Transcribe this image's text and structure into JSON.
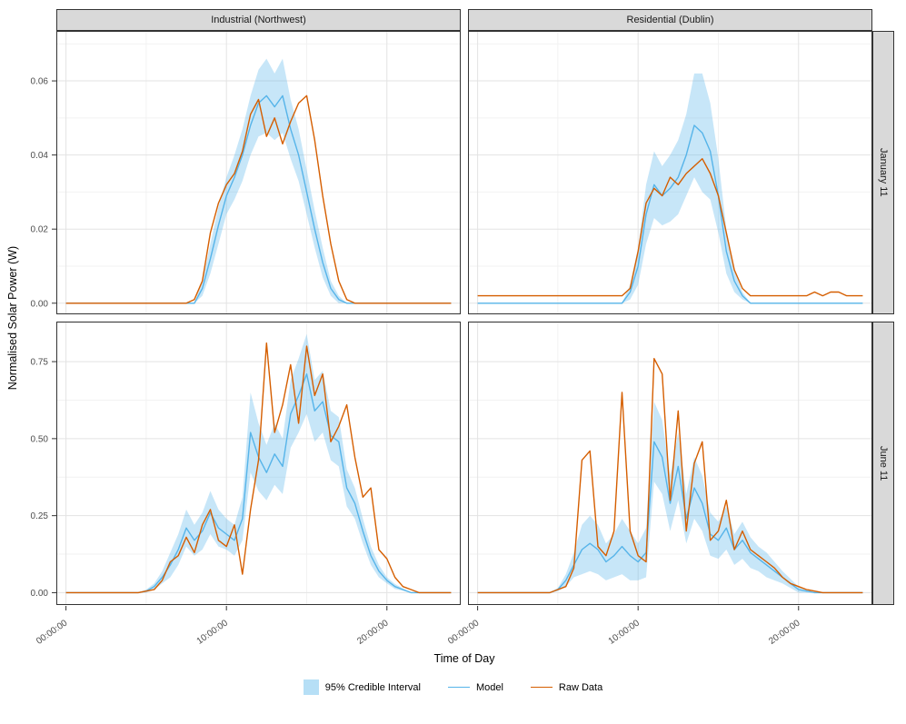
{
  "colors": {
    "model": "#56B4E9",
    "raw": "#D55E00",
    "ribbon": "#56B4E9",
    "ribbon_opacity": 0.33,
    "strip_bg": "#D9D9D9",
    "grid_major": "#E3E3E3",
    "grid_minor": "#F2F2F2",
    "panel_border": "#333333",
    "tick_text": "#4D4D4D"
  },
  "chart_data": {
    "type": "line",
    "title": "",
    "xlabel": "Time of Day",
    "ylabel": "Normalised Solar Power (W)",
    "legend": {
      "ci": "95% Credible Interval",
      "model": "Model",
      "raw": "Raw Data"
    },
    "legend_position": "bottom",
    "grid": true,
    "facet_cols": [
      "Industrial (Northwest)",
      "Residential (Dublin)"
    ],
    "facet_rows": [
      "January 11",
      "June 11"
    ],
    "xlim": [
      -0.6,
      24.6
    ],
    "x_tick_hours": [
      0,
      10,
      20
    ],
    "x_tick_labels": [
      "00:00:00",
      "10:00:00",
      "20:00:00"
    ],
    "x_minor_hours": [
      5,
      15
    ],
    "rows": [
      {
        "label": "January 11",
        "ylim": [
          -0.003,
          0.0735
        ],
        "yticks": [
          0,
          0.02,
          0.04,
          0.06
        ],
        "ytick_labels": [
          "0.00",
          "0.02",
          "0.04",
          "0.06"
        ],
        "yminor": [
          0.01,
          0.03,
          0.05,
          0.07
        ]
      },
      {
        "label": "June 11",
        "ylim": [
          -0.04,
          0.88
        ],
        "yticks": [
          0,
          0.25,
          0.5,
          0.75
        ],
        "ytick_labels": [
          "0.00",
          "0.25",
          "0.50",
          "0.75"
        ],
        "yminor": [
          0.125,
          0.375,
          0.625,
          0.875
        ]
      }
    ],
    "x_hours": [
      0,
      0.5,
      1,
      1.5,
      2,
      2.5,
      3,
      3.5,
      4,
      4.5,
      5,
      5.5,
      6,
      6.5,
      7,
      7.5,
      8,
      8.5,
      9,
      9.5,
      10,
      10.5,
      11,
      11.5,
      12,
      12.5,
      13,
      13.5,
      14,
      14.5,
      15,
      15.5,
      16,
      16.5,
      17,
      17.5,
      18,
      18.5,
      19,
      19.5,
      20,
      20.5,
      21,
      21.5,
      22,
      22.5,
      23,
      23.5,
      24
    ],
    "panels": [
      {
        "name": "january-industrial",
        "row": 0,
        "col": 0,
        "model": [
          0,
          0,
          0,
          0,
          0,
          0,
          0,
          0,
          0,
          0,
          0,
          0,
          0,
          0,
          0,
          0,
          0,
          0.004,
          0.012,
          0.021,
          0.029,
          0.034,
          0.04,
          0.048,
          0.054,
          0.056,
          0.053,
          0.056,
          0.047,
          0.04,
          0.03,
          0.02,
          0.011,
          0.004,
          0.001,
          0,
          0,
          0,
          0,
          0,
          0,
          0,
          0,
          0,
          0,
          0,
          0,
          0,
          0
        ],
        "raw": [
          0,
          0,
          0,
          0,
          0,
          0,
          0,
          0,
          0,
          0,
          0,
          0,
          0,
          0,
          0,
          0,
          0.001,
          0.006,
          0.019,
          0.027,
          0.032,
          0.035,
          0.041,
          0.051,
          0.055,
          0.045,
          0.05,
          0.043,
          0.049,
          0.054,
          0.056,
          0.044,
          0.029,
          0.016,
          0.006,
          0.001,
          0,
          0,
          0,
          0,
          0,
          0,
          0,
          0,
          0,
          0,
          0,
          0,
          0
        ],
        "ci_halfwidth": [
          0,
          0,
          0,
          0,
          0,
          0,
          0,
          0,
          0,
          0,
          0,
          0,
          0,
          0,
          0,
          0,
          0,
          0.002,
          0.004,
          0.005,
          0.005,
          0.006,
          0.007,
          0.008,
          0.009,
          0.01,
          0.009,
          0.01,
          0.008,
          0.007,
          0.006,
          0.005,
          0.004,
          0.002,
          0.001,
          0,
          0,
          0,
          0,
          0,
          0,
          0,
          0,
          0,
          0,
          0,
          0,
          0,
          0
        ]
      },
      {
        "name": "january-residential",
        "row": 0,
        "col": 1,
        "model": [
          0,
          0,
          0,
          0,
          0,
          0,
          0,
          0,
          0,
          0,
          0,
          0,
          0,
          0,
          0,
          0,
          0,
          0,
          0,
          0.003,
          0.01,
          0.024,
          0.032,
          0.029,
          0.031,
          0.034,
          0.04,
          0.048,
          0.046,
          0.041,
          0.029,
          0.014,
          0.006,
          0.002,
          0,
          0,
          0,
          0,
          0,
          0,
          0,
          0,
          0,
          0,
          0,
          0,
          0,
          0,
          0
        ],
        "raw": [
          0.002,
          0.002,
          0.002,
          0.002,
          0.002,
          0.002,
          0.002,
          0.002,
          0.002,
          0.002,
          0.002,
          0.002,
          0.002,
          0.002,
          0.002,
          0.002,
          0.002,
          0.002,
          0.002,
          0.004,
          0.014,
          0.027,
          0.031,
          0.029,
          0.034,
          0.032,
          0.035,
          0.037,
          0.039,
          0.035,
          0.029,
          0.019,
          0.009,
          0.004,
          0.002,
          0.002,
          0.002,
          0.002,
          0.002,
          0.002,
          0.002,
          0.002,
          0.003,
          0.002,
          0.003,
          0.003,
          0.002,
          0.002,
          0.002
        ],
        "ci_halfwidth": [
          0,
          0,
          0,
          0,
          0,
          0,
          0,
          0,
          0,
          0,
          0,
          0,
          0,
          0,
          0,
          0,
          0,
          0,
          0,
          0.002,
          0.005,
          0.008,
          0.009,
          0.008,
          0.009,
          0.01,
          0.011,
          0.014,
          0.016,
          0.013,
          0.01,
          0.006,
          0.003,
          0.001,
          0,
          0,
          0,
          0,
          0,
          0,
          0,
          0,
          0,
          0,
          0,
          0,
          0,
          0,
          0
        ]
      },
      {
        "name": "june-industrial",
        "row": 1,
        "col": 0,
        "model": [
          0,
          0,
          0,
          0,
          0,
          0,
          0,
          0,
          0,
          0,
          0.005,
          0.02,
          0.05,
          0.09,
          0.14,
          0.21,
          0.17,
          0.2,
          0.26,
          0.21,
          0.19,
          0.17,
          0.24,
          0.52,
          0.44,
          0.39,
          0.45,
          0.41,
          0.58,
          0.64,
          0.71,
          0.59,
          0.62,
          0.51,
          0.49,
          0.34,
          0.29,
          0.2,
          0.12,
          0.07,
          0.04,
          0.02,
          0.01,
          0,
          0,
          0,
          0,
          0,
          0
        ],
        "raw": [
          0,
          0,
          0,
          0,
          0,
          0,
          0,
          0,
          0,
          0,
          0.005,
          0.01,
          0.04,
          0.1,
          0.12,
          0.18,
          0.13,
          0.22,
          0.27,
          0.17,
          0.15,
          0.22,
          0.06,
          0.27,
          0.43,
          0.81,
          0.52,
          0.61,
          0.74,
          0.55,
          0.8,
          0.64,
          0.71,
          0.49,
          0.54,
          0.61,
          0.44,
          0.31,
          0.34,
          0.14,
          0.11,
          0.05,
          0.02,
          0.01,
          0,
          0,
          0,
          0,
          0
        ],
        "ci_halfwidth": [
          0,
          0,
          0,
          0,
          0,
          0,
          0,
          0,
          0,
          0,
          0.005,
          0.01,
          0.02,
          0.04,
          0.05,
          0.06,
          0.05,
          0.06,
          0.07,
          0.06,
          0.05,
          0.05,
          0.07,
          0.13,
          0.11,
          0.09,
          0.1,
          0.09,
          0.11,
          0.12,
          0.13,
          0.1,
          0.1,
          0.08,
          0.08,
          0.06,
          0.05,
          0.04,
          0.03,
          0.02,
          0.01,
          0.008,
          0.004,
          0,
          0,
          0,
          0,
          0,
          0
        ]
      },
      {
        "name": "june-residential",
        "row": 1,
        "col": 1,
        "model": [
          0,
          0,
          0,
          0,
          0,
          0,
          0,
          0,
          0,
          0,
          0.01,
          0.04,
          0.09,
          0.14,
          0.16,
          0.14,
          0.1,
          0.12,
          0.15,
          0.12,
          0.1,
          0.13,
          0.49,
          0.44,
          0.29,
          0.41,
          0.24,
          0.34,
          0.29,
          0.19,
          0.17,
          0.21,
          0.14,
          0.17,
          0.13,
          0.11,
          0.09,
          0.07,
          0.05,
          0.03,
          0.01,
          0.005,
          0,
          0,
          0,
          0,
          0,
          0,
          0
        ],
        "raw": [
          0,
          0,
          0,
          0,
          0,
          0,
          0,
          0,
          0,
          0,
          0.01,
          0.02,
          0.08,
          0.43,
          0.46,
          0.15,
          0.12,
          0.2,
          0.65,
          0.2,
          0.12,
          0.1,
          0.76,
          0.71,
          0.3,
          0.59,
          0.2,
          0.42,
          0.49,
          0.17,
          0.2,
          0.3,
          0.14,
          0.2,
          0.14,
          0.12,
          0.1,
          0.08,
          0.05,
          0.03,
          0.02,
          0.01,
          0.005,
          0,
          0,
          0,
          0,
          0,
          0
        ],
        "ci_halfwidth": [
          0,
          0,
          0,
          0,
          0,
          0,
          0,
          0,
          0,
          0,
          0.005,
          0.02,
          0.04,
          0.08,
          0.09,
          0.08,
          0.06,
          0.07,
          0.09,
          0.08,
          0.06,
          0.08,
          0.13,
          0.12,
          0.09,
          0.11,
          0.08,
          0.1,
          0.09,
          0.07,
          0.06,
          0.07,
          0.05,
          0.06,
          0.05,
          0.04,
          0.04,
          0.03,
          0.02,
          0.015,
          0.01,
          0.005,
          0,
          0,
          0,
          0,
          0,
          0,
          0
        ]
      }
    ]
  }
}
